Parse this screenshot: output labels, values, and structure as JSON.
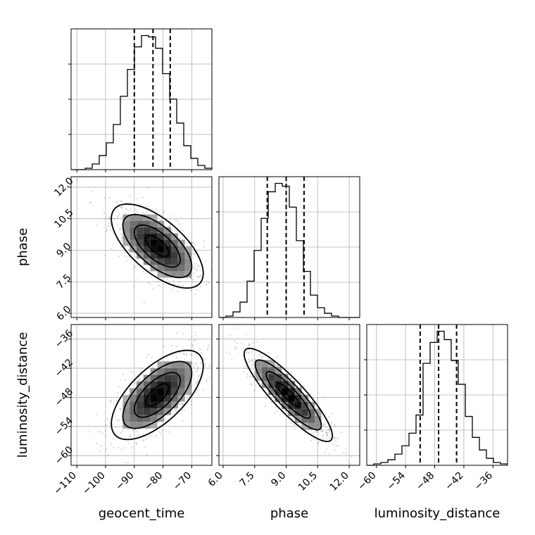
{
  "chart_data": {
    "type": "corner",
    "parameters": [
      {
        "name": "geocent_time",
        "label": "geocent_time",
        "range": [
          -112,
          -63
        ],
        "ticks": [
          -110,
          -100,
          -90,
          -80,
          -70
        ],
        "tick_labels": [
          "−110",
          "−100",
          "−90",
          "−80",
          "−70"
        ],
        "quantiles": [
          -90.0,
          -83.5,
          -77.5
        ],
        "hist_edges": [
          -112,
          -109.55,
          -107.1,
          -104.65,
          -102.2,
          -99.75,
          -97.3,
          -94.85,
          -92.4,
          -89.95,
          -87.5,
          -85.05,
          -82.6,
          -80.15,
          -77.7,
          -75.25,
          -72.8,
          -70.35,
          -67.9,
          -65.45,
          -63
        ],
        "hist_counts": [
          0,
          0,
          1,
          4,
          10,
          19,
          32,
          52,
          71,
          87,
          95,
          94,
          86,
          68,
          50,
          33,
          17,
          8,
          3,
          1
        ]
      },
      {
        "name": "phase",
        "label": "phase",
        "range": [
          5.8,
          12.5
        ],
        "ticks": [
          6.0,
          7.5,
          9.0,
          10.5,
          12.0
        ],
        "tick_labels": [
          "6.0",
          "7.5",
          "9.0",
          "10.5",
          "12.0"
        ],
        "quantiles": [
          8.1,
          9.0,
          9.85
        ],
        "hist_edges": [
          5.8,
          6.135,
          6.47,
          6.805,
          7.14,
          7.475,
          7.81,
          8.145,
          8.48,
          8.815,
          9.15,
          9.485,
          9.82,
          10.155,
          10.49,
          10.825,
          11.16,
          11.495,
          11.83,
          12.165,
          12.5
        ],
        "hist_counts": [
          0,
          1,
          4,
          11,
          26,
          48,
          71,
          90,
          96,
          94,
          79,
          55,
          33,
          16,
          7,
          3,
          1,
          0,
          0,
          0
        ]
      },
      {
        "name": "luminosity_distance",
        "label": "luminosity_distance",
        "range": [
          -62,
          -33
        ],
        "ticks": [
          -60,
          -54,
          -48,
          -42,
          -36
        ],
        "tick_labels": [
          "−60",
          "−54",
          "−48",
          "−42",
          "−36"
        ],
        "quantiles": [
          -51.0,
          -47.2,
          -43.5
        ],
        "hist_edges": [
          -62,
          -60.55,
          -59.1,
          -57.65,
          -56.2,
          -54.75,
          -53.3,
          -51.85,
          -50.4,
          -48.95,
          -47.5,
          -46.05,
          -44.6,
          -43.15,
          -41.7,
          -40.25,
          -38.8,
          -37.35,
          -35.9,
          -34.45,
          -33
        ],
        "hist_counts": [
          0,
          1,
          2,
          4,
          8,
          14,
          23,
          36,
          73,
          88,
          96,
          90,
          75,
          58,
          35,
          20,
          11,
          5,
          2,
          1
        ]
      }
    ],
    "pairs": [
      {
        "x_param": "geocent_time",
        "y_param": "phase",
        "mean": [
          -82,
          9.2
        ],
        "std": [
          8.0,
          1.0
        ],
        "correlation": -0.65,
        "contour_levels_sigma": [
          0.5,
          1.0,
          1.5,
          2.0
        ]
      },
      {
        "x_param": "geocent_time",
        "y_param": "luminosity_distance",
        "mean": [
          -82,
          -47.5
        ],
        "std": [
          8.0,
          4.6
        ],
        "correlation": 0.65,
        "contour_levels_sigma": [
          0.5,
          1.0,
          1.5,
          2.0
        ]
      },
      {
        "x_param": "phase",
        "y_param": "luminosity_distance",
        "mean": [
          9.1,
          -47.5
        ],
        "std": [
          1.05,
          4.8
        ],
        "correlation": -0.88,
        "contour_levels_sigma": [
          0.5,
          1.0,
          1.5,
          2.0
        ]
      }
    ],
    "grid": true,
    "title": ""
  }
}
